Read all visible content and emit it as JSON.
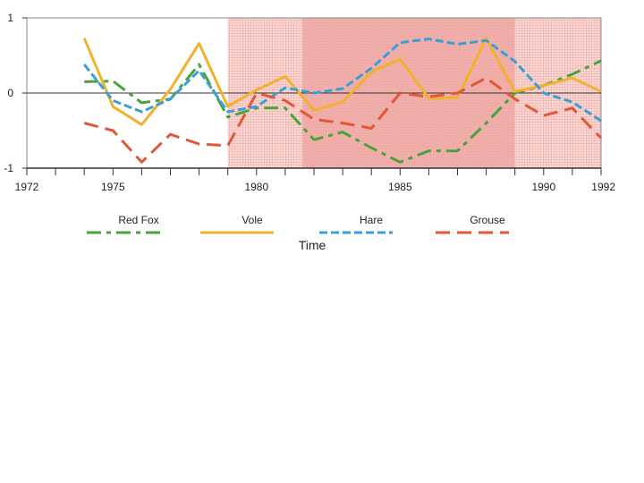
{
  "chart_data": {
    "type": "line",
    "xlabel": "Time",
    "ylabel": "",
    "xlim": [
      1972,
      1992
    ],
    "ylim": [
      -1,
      1
    ],
    "x_tick_labels": [
      "1972",
      "1975",
      "1980",
      "1985",
      "1990",
      "1992"
    ],
    "x_tick_values": [
      1972,
      1975,
      1980,
      1985,
      1990,
      1992
    ],
    "y_tick_labels": [
      "1",
      "0",
      "-1"
    ],
    "y_tick_values": [
      1,
      0,
      -1
    ],
    "shaded_regions": [
      {
        "from": 1979,
        "to": 1992,
        "color": "#f2b9b4",
        "pattern": "dotted"
      },
      {
        "from": 1981.6,
        "to": 1989,
        "color": "#eea39d",
        "pattern": "solid"
      }
    ],
    "x": [
      1974,
      1975,
      1976,
      1977,
      1978,
      1979,
      1980,
      1981,
      1982,
      1983,
      1984,
      1985,
      1986,
      1987,
      1988,
      1989,
      1990,
      1991,
      1992
    ],
    "series": [
      {
        "name": "Red Fox",
        "color": "#4aa23c",
        "style": "dash-dot",
        "values": [
          0.15,
          0.16,
          -0.13,
          -0.08,
          0.38,
          -0.32,
          -0.2,
          -0.2,
          -0.62,
          -0.52,
          -0.73,
          -0.92,
          -0.77,
          -0.77,
          -0.4,
          0.0,
          0.1,
          0.25,
          0.43
        ]
      },
      {
        "name": "Vole",
        "color": "#f2b12d",
        "style": "solid",
        "values": [
          0.73,
          -0.18,
          -0.42,
          0.05,
          0.66,
          -0.18,
          0.04,
          0.22,
          -0.23,
          -0.12,
          0.28,
          0.45,
          -0.07,
          -0.06,
          0.73,
          0.02,
          0.1,
          0.2,
          0.02
        ]
      },
      {
        "name": "Hare",
        "color": "#3a9fd6",
        "style": "dashed",
        "values": [
          0.38,
          -0.1,
          -0.25,
          -0.08,
          0.3,
          -0.25,
          -0.18,
          0.07,
          0.0,
          0.06,
          0.33,
          0.67,
          0.72,
          0.65,
          0.7,
          0.42,
          0.0,
          -0.12,
          -0.37
        ]
      },
      {
        "name": "Grouse",
        "color": "#e0573a",
        "style": "long-dash",
        "values": [
          -0.4,
          -0.5,
          -0.92,
          -0.55,
          -0.68,
          -0.7,
          0.0,
          -0.1,
          -0.35,
          -0.4,
          -0.47,
          0.0,
          -0.05,
          0.0,
          0.2,
          -0.08,
          -0.3,
          -0.2,
          -0.6
        ]
      }
    ],
    "legend": {
      "placement": "below"
    },
    "grid": false
  }
}
